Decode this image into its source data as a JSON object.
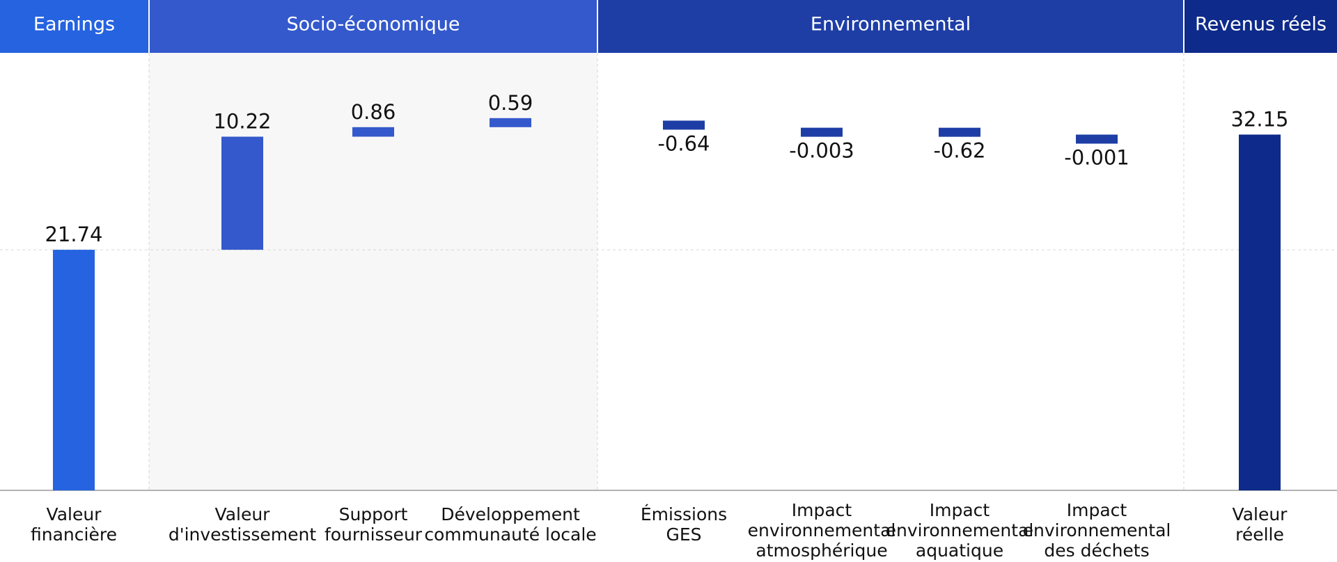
{
  "chart_data": {
    "type": "bar",
    "subtype": "waterfall",
    "title": "",
    "xlabel": "",
    "ylabel": "",
    "groups": [
      {
        "name": "Earnings",
        "color": "#2563e0"
      },
      {
        "name": "Socio-économique",
        "color": "#3459cc"
      },
      {
        "name": "Environnemental",
        "color": "#1e3ea6"
      },
      {
        "name": "Revenus réels",
        "color": "#0e2a8a"
      }
    ],
    "categories": [
      [
        "Valeur",
        "financière"
      ],
      [
        "Valeur",
        "d'investissement"
      ],
      [
        "Support",
        "fournisseur"
      ],
      [
        "Développement",
        "communauté locale"
      ],
      [
        "Émissions",
        "GES"
      ],
      [
        "Impact",
        "environnemental",
        "atmosphérique"
      ],
      [
        "Impact",
        "environnemental",
        "aquatique"
      ],
      [
        "Impact",
        "environnemental",
        "des déchets"
      ],
      [
        "Valeur",
        "réelle"
      ]
    ],
    "category_group": [
      0,
      1,
      1,
      1,
      2,
      2,
      2,
      2,
      3
    ],
    "values": [
      21.74,
      10.22,
      0.86,
      0.59,
      -0.64,
      -0.003,
      -0.62,
      -0.001,
      32.15
    ],
    "labels": [
      "21.74",
      "10.22",
      "0.86",
      "0.59",
      "-0.64",
      "-0.003",
      "-0.62",
      "-0.001",
      "32.15"
    ],
    "bar_kind": [
      "total",
      "delta",
      "delta",
      "delta",
      "delta",
      "delta",
      "delta",
      "delta",
      "total"
    ],
    "colors": {
      "earnings": "#2563e0",
      "socio": "#3459cc",
      "environ": "#1e3ea6",
      "total": "#0e2a8a",
      "socio_background": "#f7f7f7",
      "gridline": "#d6d6d6",
      "baseline": "#9a9a9a"
    },
    "grid": true,
    "legend": "none"
  }
}
